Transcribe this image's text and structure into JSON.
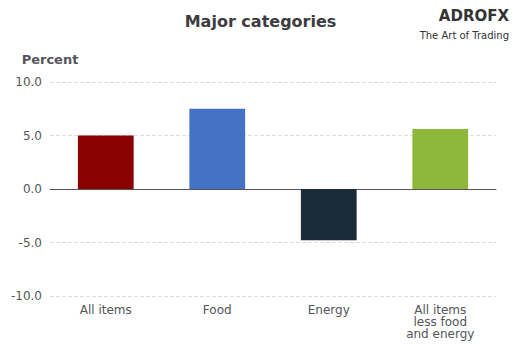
{
  "chart_data": {
    "type": "bar",
    "title": "Major categories",
    "ylabel": "Percent",
    "categories": [
      "All items",
      "Food",
      "Energy",
      "All items\nless food\nand energy"
    ],
    "values": [
      5.0,
      7.5,
      -4.8,
      5.6
    ],
    "colors": [
      "#8B0000",
      "#4472C4",
      "#1C2B3A",
      "#8DB83A"
    ],
    "ylim": [
      -10.0,
      10.0
    ],
    "yticks": [
      {
        "value": -10.0,
        "label": "-10.0"
      },
      {
        "value": -5.0,
        "label": "-5.0"
      },
      {
        "value": 0.0,
        "label": "0.0"
      },
      {
        "value": 5.0,
        "label": "5.0"
      },
      {
        "value": 10.0,
        "label": "10.0"
      }
    ],
    "grid": true,
    "annotations": [
      "ADRO",
      "FX",
      "The Art of Trading"
    ]
  }
}
